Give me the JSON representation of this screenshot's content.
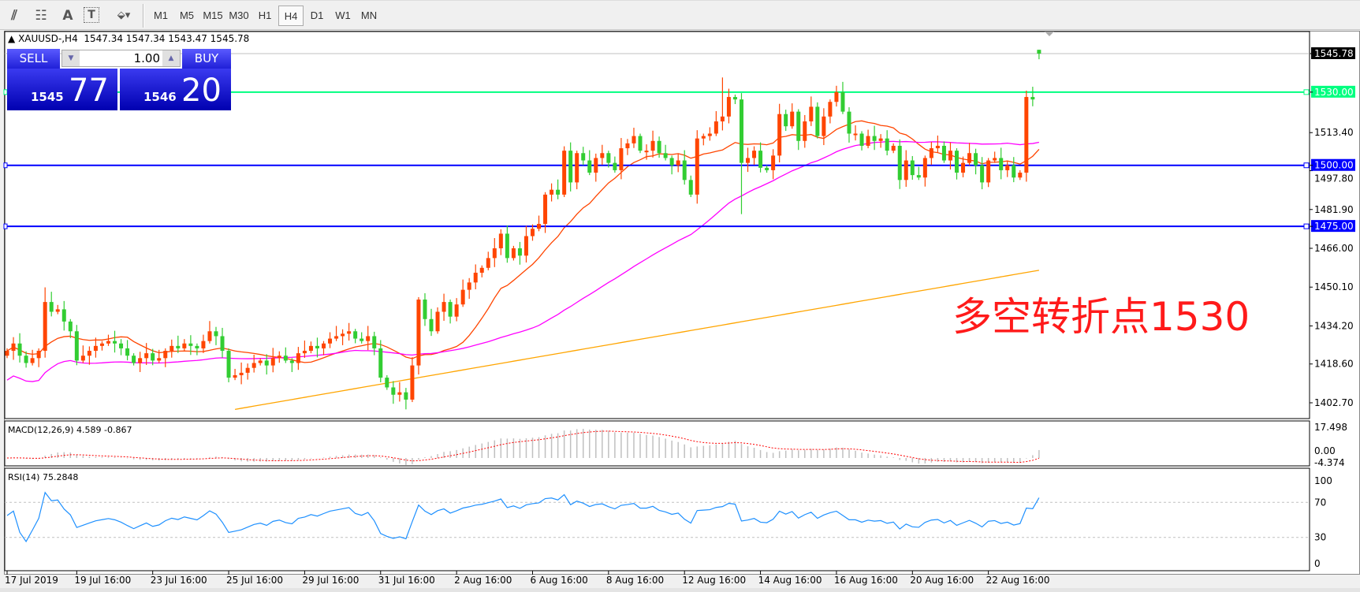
{
  "toolbar": {
    "icons": [
      "equidistant-channel-icon",
      "fibonacci-icon",
      "text-icon",
      "text-label-icon",
      "arrows-icon"
    ],
    "timeframes": [
      "M1",
      "M5",
      "M15",
      "M30",
      "H1",
      "H4",
      "D1",
      "W1",
      "MN"
    ],
    "active_timeframe": "H4"
  },
  "chart": {
    "title": "XAUUSD-,H4",
    "ohlc": "1547.34 1547.34 1543.47 1545.78",
    "annotation": "多空转折点1530"
  },
  "trade_panel": {
    "sell_label": "SELL",
    "buy_label": "BUY",
    "lot": "1.00",
    "sell_price_small": "1545",
    "sell_price_big": "77",
    "buy_price_small": "1546",
    "buy_price_big": "20"
  },
  "price_axis": {
    "ticks": [
      "1513.40",
      "1497.80",
      "1481.90",
      "1466.00",
      "1450.10",
      "1434.20",
      "1418.60",
      "1402.70"
    ],
    "current_price": "1545.78",
    "levels": [
      {
        "label": "1530.00",
        "value": 1530.0,
        "color": "#00ff80"
      },
      {
        "label": "1500.00",
        "value": 1500.0,
        "color": "#0000ff"
      },
      {
        "label": "1475.00",
        "value": 1475.0,
        "color": "#0000ff"
      }
    ]
  },
  "macd": {
    "label": "MACD(12,26,9) 4.589 -0.867",
    "max_label": "17.498",
    "zero_label": "0.00",
    "min_label": "-4.374",
    "max": 17.498,
    "min": -4.374
  },
  "rsi": {
    "label": "RSI(14) 75.2848",
    "levels": [
      "100",
      "70",
      "30",
      "0"
    ]
  },
  "time_axis": [
    {
      "label": "17 Jul 2019",
      "index": 0
    },
    {
      "label": "19 Jul 16:00",
      "index": 11
    },
    {
      "label": "23 Jul 16:00",
      "index": 23
    },
    {
      "label": "25 Jul 16:00",
      "index": 35
    },
    {
      "label": "29 Jul 16:00",
      "index": 47
    },
    {
      "label": "31 Jul 16:00",
      "index": 59
    },
    {
      "label": "2 Aug 16:00",
      "index": 71
    },
    {
      "label": "6 Aug 16:00",
      "index": 83
    },
    {
      "label": "8 Aug 16:00",
      "index": 95
    },
    {
      "label": "12 Aug 16:00",
      "index": 107
    },
    {
      "label": "14 Aug 16:00",
      "index": 119
    },
    {
      "label": "16 Aug 16:00",
      "index": 131
    },
    {
      "label": "20 Aug 16:00",
      "index": 143
    },
    {
      "label": "22 Aug 16:00",
      "index": 155
    }
  ],
  "chart_data": {
    "type": "candlestick",
    "symbol": "XAUUSD-",
    "timeframe": "H4",
    "ylim": [
      1395,
      1550
    ],
    "up_color": "#ff4500",
    "down_color": "#32cd32",
    "close": [
      1424,
      1427,
      1422,
      1419,
      1421,
      1424,
      1444,
      1440,
      1441,
      1436,
      1432,
      1420,
      1422,
      1424,
      1426,
      1427,
      1428,
      1427,
      1425,
      1422,
      1419,
      1421,
      1423,
      1420,
      1421,
      1424,
      1426,
      1425,
      1427,
      1426,
      1425,
      1428,
      1432,
      1430,
      1424,
      1413,
      1414,
      1415,
      1417,
      1419,
      1420,
      1418,
      1421,
      1422,
      1420,
      1419,
      1423,
      1424,
      1426,
      1425,
      1427,
      1429,
      1430,
      1431,
      1432,
      1429,
      1428,
      1430,
      1425,
      1413,
      1409,
      1406,
      1407,
      1404,
      1418,
      1445,
      1437,
      1432,
      1440,
      1444,
      1438,
      1443,
      1449,
      1452,
      1456,
      1458,
      1462,
      1466,
      1472,
      1462,
      1466,
      1463,
      1471,
      1474,
      1476,
      1488,
      1490,
      1488,
      1506,
      1493,
      1505,
      1502,
      1497,
      1503,
      1505,
      1501,
      1498,
      1507,
      1509,
      1512,
      1506,
      1506,
      1510,
      1505,
      1503,
      1500,
      1502,
      1494,
      1488,
      1511,
      1512,
      1513,
      1518,
      1520,
      1528,
      1527,
      1501,
      1503,
      1506,
      1499,
      1498,
      1504,
      1521,
      1516,
      1522,
      1510,
      1518,
      1524,
      1512,
      1520,
      1526,
      1530,
      1522,
      1513,
      1513,
      1508,
      1512,
      1510,
      1511,
      1506,
      1508,
      1494,
      1502,
      1496,
      1495,
      1503,
      1507,
      1508,
      1502,
      1506,
      1497,
      1501,
      1505,
      1500,
      1493,
      1502,
      1503,
      1498,
      1500,
      1495,
      1497,
      1528,
      1527,
      1545.78
    ],
    "last_candle": {
      "open": 1547.34,
      "high": 1547.34,
      "low": 1543.47,
      "close": 1545.78
    },
    "wick_extremes": {
      "6": {
        "high": 1450
      },
      "113": {
        "high": 1536
      },
      "116": {
        "low": 1480
      },
      "63": {
        "low": 1400
      }
    },
    "moving_averages": [
      {
        "period": 14,
        "color": "#ff4500"
      },
      {
        "period": 50,
        "color": "#ff00ff"
      },
      {
        "period": 200,
        "color": "#ffa500",
        "from_index": 36,
        "from_value": 1400,
        "to_value": 1457
      }
    ],
    "horizontal_levels": [
      1530.0,
      1500.0,
      1475.0
    ]
  }
}
